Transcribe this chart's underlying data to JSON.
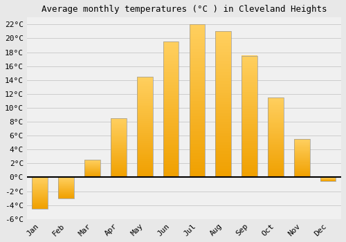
{
  "title": "Average monthly temperatures (°C ) in Cleveland Heights",
  "months": [
    "Jan",
    "Feb",
    "Mar",
    "Apr",
    "May",
    "Jun",
    "Jul",
    "Aug",
    "Sep",
    "Oct",
    "Nov",
    "Dec"
  ],
  "values": [
    -4.5,
    -3.0,
    2.5,
    8.5,
    14.5,
    19.5,
    22.0,
    21.0,
    17.5,
    11.5,
    5.5,
    -0.5
  ],
  "bar_color_bottom": "#F0A000",
  "bar_color_top": "#FFD060",
  "bar_edge_color": "#999999",
  "ylim": [
    -6,
    23
  ],
  "yticks": [
    -6,
    -4,
    -2,
    0,
    2,
    4,
    6,
    8,
    10,
    12,
    14,
    16,
    18,
    20,
    22
  ],
  "ytick_labels": [
    "-6°C",
    "-4°C",
    "-2°C",
    "0°C",
    "2°C",
    "4°C",
    "6°C",
    "8°C",
    "10°C",
    "12°C",
    "14°C",
    "16°C",
    "18°C",
    "20°C",
    "22°C"
  ],
  "background_color": "#E8E8E8",
  "plot_bg_color": "#F0F0F0",
  "grid_color": "#CCCCCC",
  "title_fontsize": 9,
  "tick_fontsize": 8,
  "zero_line_color": "#000000",
  "bar_width": 0.6,
  "gradient_steps": 50
}
